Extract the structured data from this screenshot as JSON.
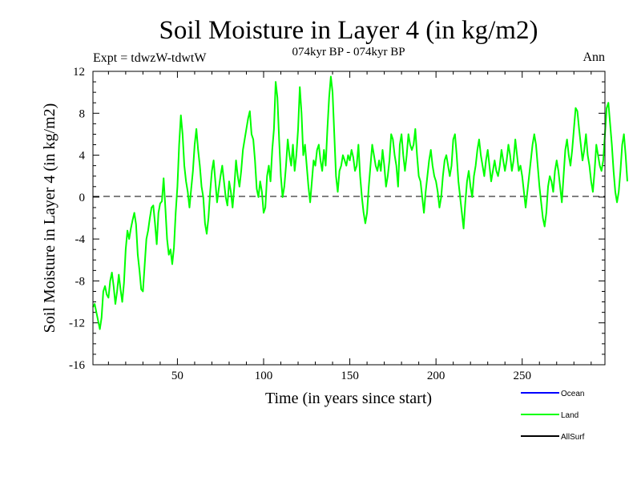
{
  "chart_data": {
    "type": "line",
    "title": "Soil Moisture in Layer 4 (in kg/m2)",
    "subtitle": "074kyr BP - 074kyr BP",
    "experiment_label": "Expt = tdwzW-tdwtW",
    "period_label": "Ann",
    "xlabel": "Time (in years since start)",
    "ylabel": "Soil Moisture in Layer 4 (in kg/m2)",
    "xlim": [
      1,
      298
    ],
    "ylim": [
      -16,
      12
    ],
    "x_ticks": [
      50,
      100,
      150,
      200,
      250
    ],
    "y_ticks": [
      -16,
      -12,
      -8,
      -4,
      0,
      4,
      8,
      12
    ],
    "zero_line": true,
    "legend": [
      {
        "name": "Ocean",
        "color": "#0000ff"
      },
      {
        "name": "Land",
        "color": "#00ff00"
      },
      {
        "name": "AllSurf",
        "color": "#000000"
      }
    ],
    "series": [
      {
        "name": "Land",
        "color": "#00ff00",
        "x_start": 1,
        "x_step": 1,
        "values": [
          -10.5,
          -10.2,
          -11.0,
          -11.8,
          -12.6,
          -11.5,
          -9.0,
          -8.5,
          -9.3,
          -9.6,
          -8.0,
          -7.2,
          -8.5,
          -10.2,
          -9.0,
          -7.4,
          -8.8,
          -10.0,
          -8.2,
          -5.0,
          -3.2,
          -4.0,
          -3.0,
          -2.2,
          -1.5,
          -2.6,
          -5.5,
          -7.0,
          -8.8,
          -9.0,
          -6.5,
          -4.0,
          -3.2,
          -2.0,
          -1.0,
          -0.8,
          -2.5,
          -4.5,
          -1.5,
          -0.6,
          -0.4,
          1.8,
          -1.0,
          -4.0,
          -5.5,
          -5.0,
          -6.4,
          -4.8,
          -1.5,
          1.0,
          5.0,
          7.8,
          6.0,
          3.0,
          1.5,
          0.5,
          -1.0,
          0.8,
          2.5,
          5.0,
          6.5,
          4.5,
          3.0,
          1.0,
          0.0,
          -2.5,
          -3.5,
          -2.0,
          0.5,
          2.5,
          3.5,
          1.5,
          -0.5,
          0.8,
          2.0,
          3.0,
          1.5,
          0.0,
          -0.8,
          1.5,
          0.5,
          -1.0,
          1.0,
          3.5,
          2.0,
          1.0,
          2.5,
          4.5,
          5.5,
          6.5,
          7.5,
          8.2,
          6.0,
          5.5,
          3.5,
          0.8,
          0.0,
          1.5,
          0.5,
          -1.5,
          -1.0,
          2.0,
          3.0,
          1.5,
          4.5,
          6.5,
          11.0,
          9.5,
          5.5,
          2.0,
          0.0,
          1.0,
          3.0,
          5.5,
          4.0,
          3.0,
          5.0,
          2.5,
          4.0,
          6.5,
          10.5,
          8.0,
          4.0,
          5.0,
          3.0,
          1.0,
          -0.5,
          1.5,
          3.5,
          3.0,
          4.5,
          5.0,
          3.5,
          2.5,
          4.5,
          3.0,
          6.5,
          9.5,
          11.5,
          10.0,
          6.0,
          2.0,
          0.5,
          2.5,
          3.0,
          4.0,
          3.5,
          3.0,
          4.0,
          3.5,
          4.5,
          3.8,
          2.5,
          3.0,
          5.0,
          2.0,
          0.0,
          -1.5,
          -2.5,
          -1.5,
          1.0,
          3.0,
          5.0,
          4.0,
          3.0,
          2.5,
          3.5,
          2.5,
          4.5,
          3.0,
          1.0,
          2.0,
          3.5,
          6.0,
          5.5,
          4.0,
          3.0,
          1.0,
          5.0,
          6.0,
          4.0,
          2.5,
          4.0,
          6.0,
          5.0,
          4.5,
          5.0,
          6.5,
          4.0,
          2.0,
          1.5,
          0.0,
          -1.5,
          0.5,
          2.0,
          3.5,
          4.5,
          3.0,
          2.0,
          1.5,
          0.5,
          -1.0,
          0.0,
          2.0,
          3.5,
          4.0,
          3.0,
          2.0,
          3.0,
          5.5,
          6.0,
          4.0,
          1.5,
          0.0,
          -1.5,
          -3.0,
          -0.5,
          1.5,
          2.5,
          1.0,
          0.0,
          2.0,
          3.0,
          4.5,
          5.5,
          4.0,
          3.0,
          2.0,
          3.5,
          4.5,
          3.0,
          1.5,
          2.5,
          3.5,
          2.5,
          2.0,
          3.0,
          4.5,
          3.5,
          2.5,
          3.5,
          5.0,
          4.0,
          2.5,
          3.5,
          5.5,
          4.0,
          2.5,
          3.0,
          2.0,
          0.5,
          -1.0,
          0.5,
          2.0,
          3.5,
          5.0,
          6.0,
          5.0,
          3.0,
          1.0,
          -0.5,
          -2.0,
          -2.8,
          -1.5,
          1.0,
          2.0,
          1.5,
          0.5,
          2.5,
          3.5,
          2.5,
          1.0,
          -0.5,
          2.0,
          4.5,
          5.5,
          4.0,
          3.0,
          4.5,
          6.5,
          8.5,
          8.2,
          6.5,
          5.0,
          3.5,
          4.5,
          6.0,
          4.0,
          3.0,
          1.5,
          0.5,
          2.5,
          5.0,
          4.0,
          3.0,
          2.5,
          3.5,
          6.0,
          8.5,
          9.0,
          7.0,
          5.0,
          2.5,
          0.5,
          -0.5,
          0.5,
          2.5,
          5.0,
          6.0,
          4.0,
          1.5
        ]
      }
    ]
  }
}
